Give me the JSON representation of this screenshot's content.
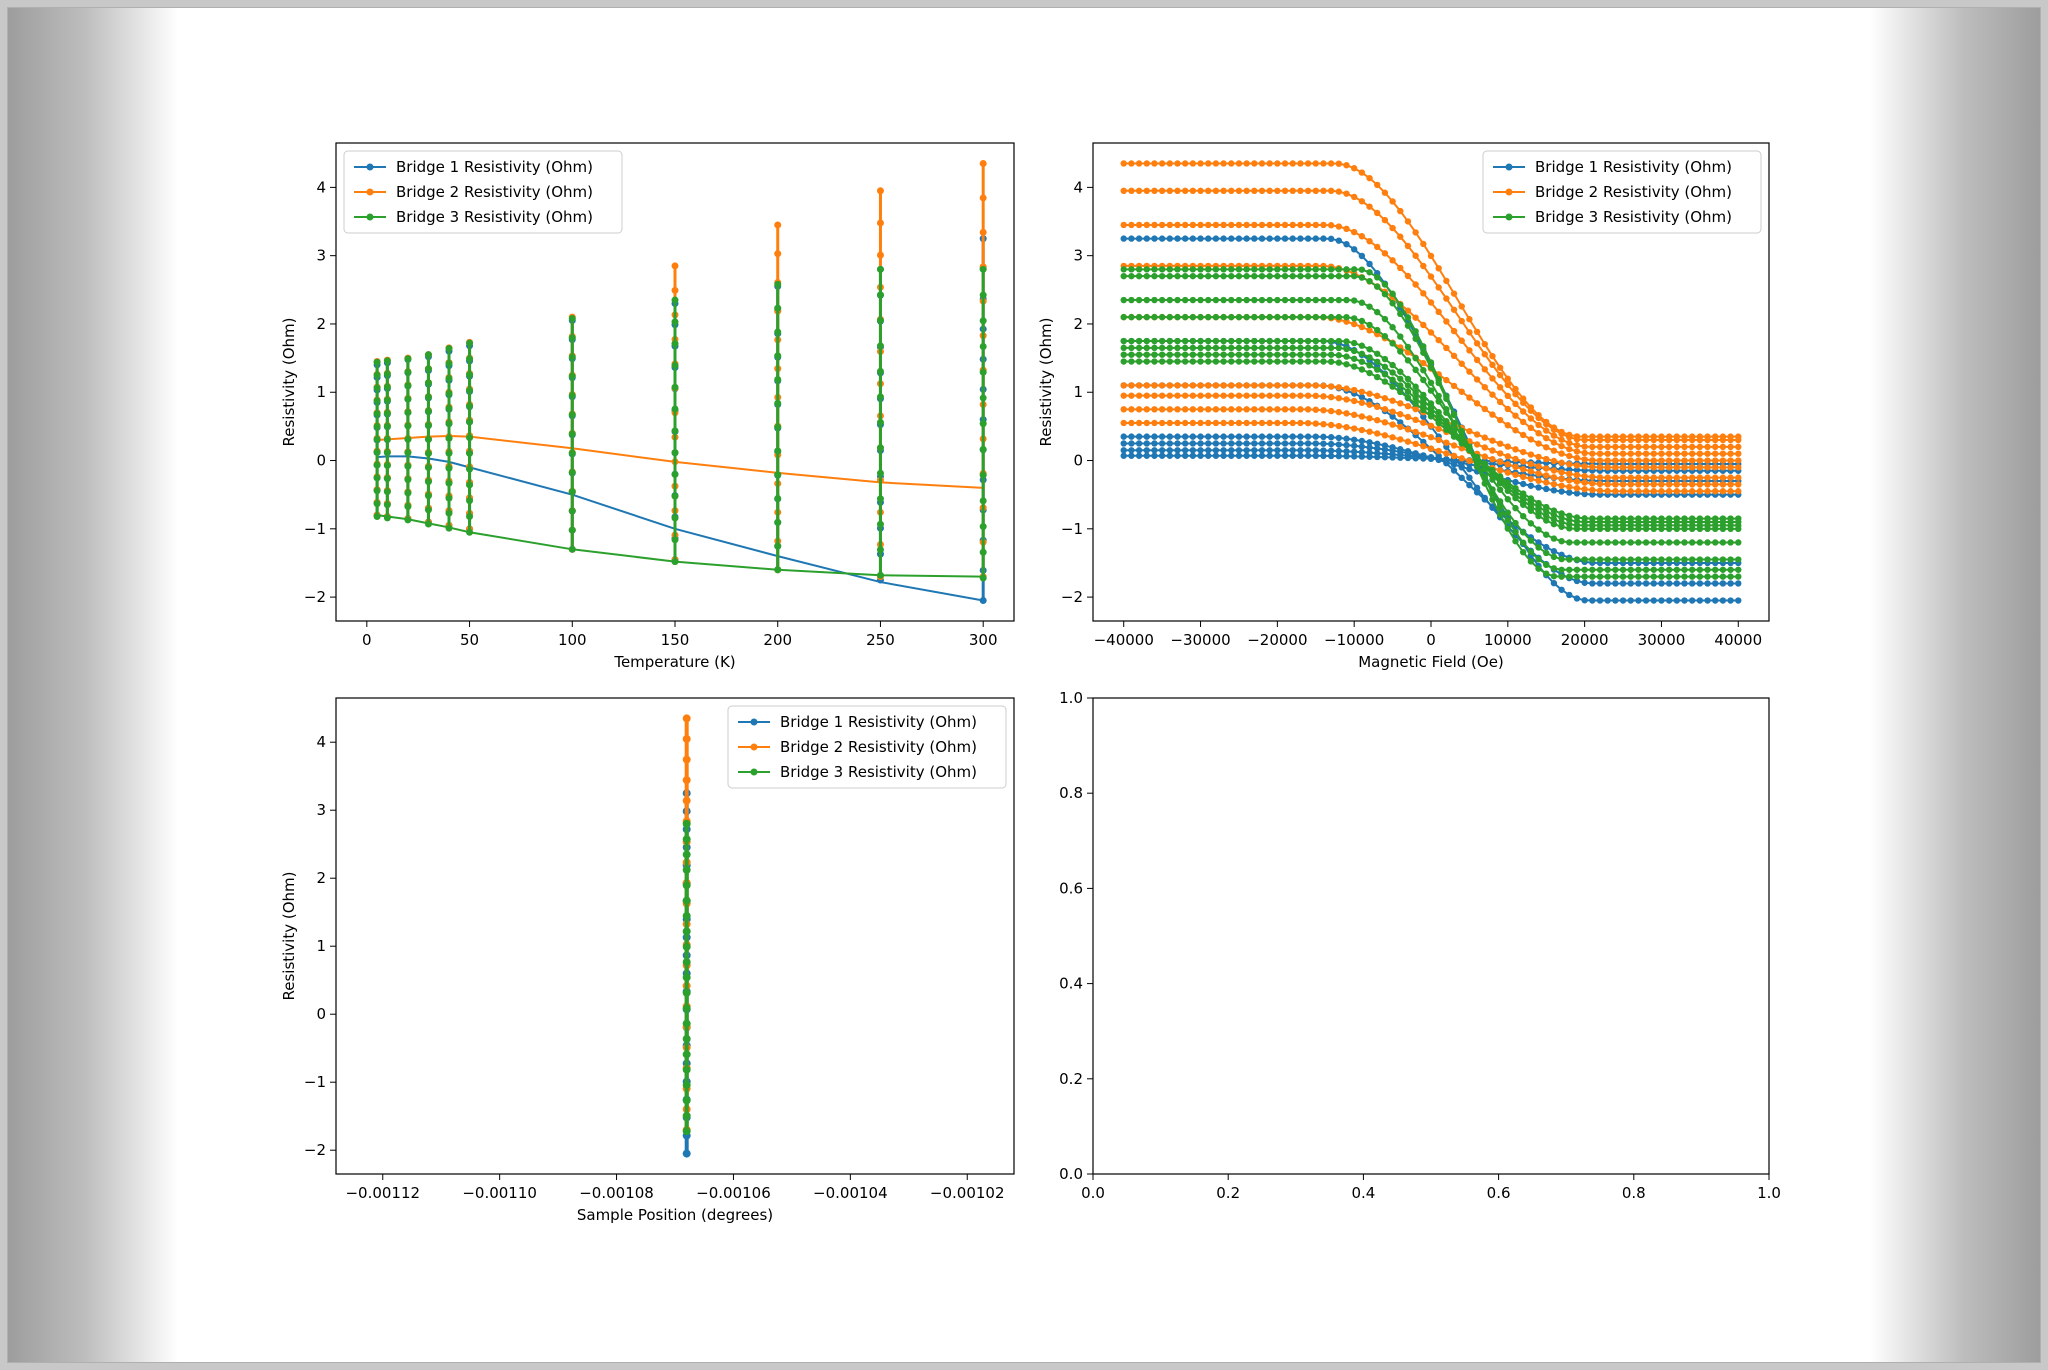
{
  "colors": {
    "series": [
      "#1f77b4",
      "#ff7f0e",
      "#2ca02c"
    ]
  },
  "chart_data": [
    {
      "id": "temperature",
      "type": "line",
      "xlabel": "Temperature (K)",
      "ylabel": "Resistivity (Ohm)",
      "xlim": [
        -15,
        315
      ],
      "ylim": [
        -2.35,
        4.65
      ],
      "xticks": [
        0,
        50,
        100,
        150,
        200,
        250,
        300
      ],
      "yticks": [
        -2,
        -1,
        0,
        1,
        2,
        3,
        4
      ],
      "legend": "top-left",
      "grid": false,
      "x": [
        5,
        10,
        20,
        30,
        40,
        50,
        100,
        150,
        200,
        250,
        300
      ],
      "series": [
        {
          "name": "Bridge 1 Resistivity (Ohm)",
          "values": [
            0.05,
            0.06,
            0.06,
            0.03,
            -0.02,
            -0.1,
            -0.5,
            -1.0,
            -1.4,
            -1.78,
            -2.05
          ],
          "spike_min": [
            -0.8,
            -0.82,
            -0.85,
            -0.9,
            -0.95,
            -1.0,
            -1.3,
            -1.45,
            -1.6,
            -1.75,
            -2.05
          ],
          "spike_max": [
            1.4,
            1.43,
            1.48,
            1.52,
            1.6,
            1.68,
            2.05,
            2.3,
            2.55,
            2.8,
            3.25
          ]
        },
        {
          "name": "Bridge 2 Resistivity (Ohm)",
          "values": [
            0.3,
            0.31,
            0.33,
            0.35,
            0.36,
            0.35,
            0.18,
            -0.02,
            -0.18,
            -0.32,
            -0.4
          ],
          "spike_min": [
            -0.8,
            -0.82,
            -0.85,
            -0.9,
            -0.95,
            -1.0,
            -1.3,
            -1.45,
            -1.6,
            -1.7,
            -1.7
          ],
          "spike_max": [
            1.45,
            1.47,
            1.5,
            1.55,
            1.65,
            1.73,
            2.1,
            2.85,
            3.45,
            3.95,
            4.35
          ]
        },
        {
          "name": "Bridge 3 Resistivity (Ohm)",
          "values": [
            -0.8,
            -0.82,
            -0.86,
            -0.92,
            -0.98,
            -1.05,
            -1.3,
            -1.48,
            -1.6,
            -1.68,
            -1.7
          ],
          "spike_min": [
            -0.82,
            -0.84,
            -0.87,
            -0.93,
            -0.99,
            -1.05,
            -1.3,
            -1.48,
            -1.6,
            -1.68,
            -1.72
          ],
          "spike_max": [
            1.44,
            1.46,
            1.49,
            1.55,
            1.64,
            1.72,
            2.08,
            2.35,
            2.58,
            2.8,
            2.8
          ]
        }
      ]
    },
    {
      "id": "field",
      "type": "line",
      "xlabel": "Magnetic Field (Oe)",
      "ylabel": "Resistivity (Ohm)",
      "xlim": [
        -44000,
        44000
      ],
      "ylim": [
        -2.35,
        4.65
      ],
      "xticks": [
        -40000,
        -30000,
        -20000,
        -10000,
        0,
        10000,
        20000,
        30000,
        40000
      ],
      "xticklabels": [
        "−40000",
        "−30000",
        "−20000",
        "−10000",
        "0",
        "10000",
        "20000",
        "30000",
        "40000"
      ],
      "yticks": [
        -2,
        -1,
        0,
        1,
        2,
        3,
        4
      ],
      "legend": "top-right",
      "grid": false,
      "sweep_center": 3500,
      "series": [
        {
          "name": "Bridge 1 Resistivity (Ohm)",
          "high_field_plateaus": [
            3.25,
            1.75,
            1.1,
            0.35,
            0.25,
            0.15,
            0.07
          ],
          "low_field_plateaus": [
            -2.05,
            -1.8,
            -1.5,
            -0.5,
            -0.3,
            -0.15,
            -0.05
          ],
          "knee": 17000
        },
        {
          "name": "Bridge 2 Resistivity (Ohm)",
          "high_field_plateaus": [
            4.35,
            3.95,
            3.45,
            2.85,
            2.1,
            1.1,
            0.95,
            0.75,
            0.55
          ],
          "low_field_plateaus": [
            0.35,
            0.3,
            0.2,
            0.1,
            0.0,
            -0.1,
            -0.25,
            -0.35,
            -0.45
          ],
          "knee": 16000
        },
        {
          "name": "Bridge 3 Resistivity (Ohm)",
          "high_field_plateaus": [
            2.8,
            2.7,
            2.35,
            2.1,
            1.75,
            1.65,
            1.55,
            1.45
          ],
          "low_field_plateaus": [
            -1.7,
            -1.6,
            -1.45,
            -1.2,
            -1.0,
            -0.95,
            -0.9,
            -0.85
          ],
          "knee": 13000
        }
      ]
    },
    {
      "id": "position",
      "type": "scatter",
      "xlabel": "Sample Position (degrees)",
      "ylabel": "Resistivity (Ohm)",
      "xlim": [
        -0.001128,
        -0.001012
      ],
      "ylim": [
        -2.35,
        4.65
      ],
      "xticks": [
        -0.00112,
        -0.0011,
        -0.00108,
        -0.00106,
        -0.00104,
        -0.00102
      ],
      "xticklabels": [
        "−0.00112",
        "−0.00110",
        "−0.00108",
        "−0.00106",
        "−0.00104",
        "−0.00102"
      ],
      "yticks": [
        -2,
        -1,
        0,
        1,
        2,
        3,
        4
      ],
      "legend": "top-right",
      "grid": false,
      "x_value": -0.001068,
      "series": [
        {
          "name": "Bridge 1 Resistivity (Ohm)",
          "range": [
            -2.05,
            3.25
          ]
        },
        {
          "name": "Bridge 2 Resistivity (Ohm)",
          "range": [
            -1.7,
            4.35
          ]
        },
        {
          "name": "Bridge 3 Resistivity (Ohm)",
          "range": [
            -1.72,
            2.8
          ]
        }
      ]
    },
    {
      "id": "empty",
      "type": "line",
      "xlim": [
        0,
        1
      ],
      "ylim": [
        0,
        1
      ],
      "xticks": [
        0.0,
        0.2,
        0.4,
        0.6,
        0.8,
        1.0
      ],
      "yticks": [
        0.0,
        0.2,
        0.4,
        0.6,
        0.8,
        1.0
      ],
      "series": []
    }
  ]
}
